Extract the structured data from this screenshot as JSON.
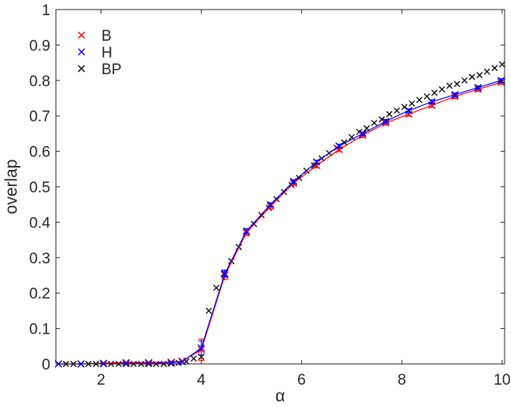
{
  "chart_data": {
    "type": "scatter",
    "xlabel": "α",
    "ylabel": "overlap",
    "xlim": [
      1.1,
      10.05
    ],
    "ylim": [
      0,
      1
    ],
    "xticks": [
      2,
      4,
      6,
      8,
      10
    ],
    "yticks": [
      0,
      0.1,
      0.2,
      0.3,
      0.4,
      0.5,
      0.6,
      0.7,
      0.8,
      0.9,
      1
    ],
    "xtick_labels": [
      "2",
      "4",
      "6",
      "8",
      "10"
    ],
    "ytick_labels": [
      "0",
      "0.1",
      "0.2",
      "0.3",
      "0.4",
      "0.5",
      "0.6",
      "0.7",
      "0.8",
      "0.9",
      "1"
    ],
    "grid": false,
    "legend_position": "top-left",
    "series": [
      {
        "name": "B",
        "color": "#ff0000",
        "marker": "x",
        "line": true,
        "x": [
          1.15,
          1.6,
          2.05,
          2.5,
          2.95,
          3.4,
          3.62,
          4.0,
          4.47,
          4.9,
          5.38,
          5.84,
          6.3,
          6.75,
          7.22,
          7.68,
          8.14,
          8.6,
          9.06,
          9.52,
          9.98
        ],
        "y": [
          0.0,
          0.0,
          0.002,
          0.004,
          0.004,
          0.005,
          0.008,
          0.04,
          0.25,
          0.37,
          0.445,
          0.51,
          0.56,
          0.605,
          0.645,
          0.68,
          0.705,
          0.73,
          0.755,
          0.775,
          0.795
        ],
        "err": [
          0,
          0,
          0,
          0,
          0,
          0,
          0,
          0.03,
          0.012,
          0.008,
          0.006,
          0.006,
          0.006,
          0.006,
          0.006,
          0.006,
          0.006,
          0.006,
          0.006,
          0.006,
          0.006
        ]
      },
      {
        "name": "H",
        "color": "#0000ff",
        "marker": "x",
        "line": true,
        "x": [
          1.15,
          1.6,
          2.05,
          2.5,
          2.95,
          3.4,
          3.62,
          4.0,
          4.47,
          4.9,
          5.38,
          5.84,
          6.3,
          6.75,
          7.22,
          7.68,
          8.14,
          8.6,
          9.06,
          9.52,
          9.98
        ],
        "y": [
          0.0,
          0.0,
          0.001,
          0.002,
          0.002,
          0.003,
          0.006,
          0.045,
          0.255,
          0.375,
          0.45,
          0.515,
          0.57,
          0.615,
          0.65,
          0.685,
          0.715,
          0.74,
          0.76,
          0.78,
          0.8
        ],
        "err": [
          0,
          0,
          0,
          0,
          0,
          0,
          0,
          0.02,
          0.01,
          0.007,
          0.005,
          0.005,
          0.005,
          0.005,
          0.005,
          0.005,
          0.005,
          0.005,
          0.005,
          0.005,
          0.005
        ]
      },
      {
        "name": "BP",
        "color": "#000000",
        "marker": "x",
        "line": false,
        "x": [
          1.15,
          1.3,
          1.45,
          1.6,
          1.75,
          1.9,
          2.05,
          2.2,
          2.35,
          2.5,
          2.65,
          2.8,
          2.95,
          3.1,
          3.25,
          3.4,
          3.55,
          3.7,
          3.85,
          4.0,
          4.15,
          4.3,
          4.45,
          4.6,
          4.75,
          4.9,
          5.05,
          5.2,
          5.35,
          5.5,
          5.65,
          5.8,
          5.95,
          6.1,
          6.25,
          6.4,
          6.55,
          6.7,
          6.85,
          7.0,
          7.15,
          7.3,
          7.45,
          7.6,
          7.75,
          7.9,
          8.05,
          8.2,
          8.35,
          8.5,
          8.65,
          8.8,
          8.95,
          9.1,
          9.25,
          9.4,
          9.55,
          9.7,
          9.85,
          10.0
        ],
        "y": [
          0.0,
          0.0,
          0.0,
          0.0,
          0.0,
          0.0,
          0.0,
          0.0,
          0.0,
          0.0,
          0.0,
          0.0,
          0.0,
          0.0,
          0.0,
          0.001,
          0.003,
          0.007,
          0.015,
          0.02,
          0.15,
          0.215,
          0.255,
          0.29,
          0.33,
          0.37,
          0.395,
          0.42,
          0.44,
          0.465,
          0.485,
          0.505,
          0.525,
          0.545,
          0.56,
          0.58,
          0.595,
          0.61,
          0.625,
          0.64,
          0.655,
          0.665,
          0.68,
          0.69,
          0.705,
          0.715,
          0.725,
          0.735,
          0.745,
          0.755,
          0.765,
          0.775,
          0.785,
          0.79,
          0.8,
          0.81,
          0.815,
          0.825,
          0.835,
          0.845
        ]
      }
    ]
  }
}
